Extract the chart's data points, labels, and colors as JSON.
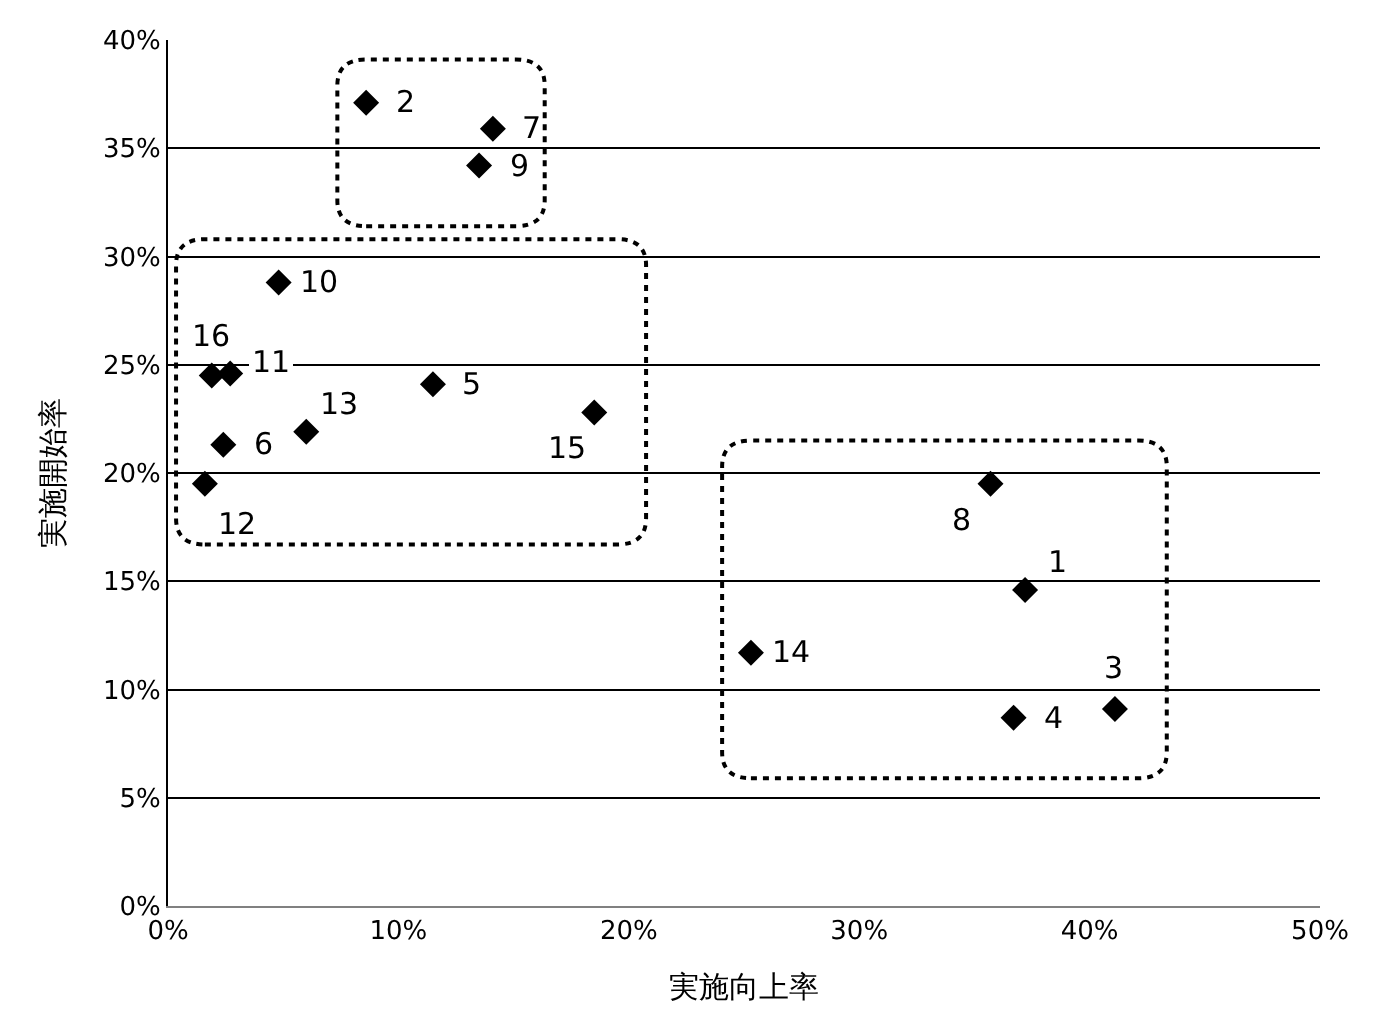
{
  "chart_data": {
    "type": "scatter",
    "xlabel": "実施向上率",
    "ylabel": "実施開始率",
    "x": [
      37.2,
      8.6,
      41.1,
      36.7,
      11.5,
      2.4,
      14.1,
      35.7,
      13.5,
      4.8,
      2.7,
      1.6,
      6.0,
      25.3,
      18.5,
      1.9
    ],
    "series": [
      {
        "color": "#000000",
        "values": [
          14.6,
          37.1,
          9.1,
          8.7,
          24.1,
          21.3,
          35.9,
          19.5,
          34.2,
          28.8,
          24.6,
          19.5,
          21.9,
          11.7,
          22.8,
          24.5
        ]
      }
    ],
    "annotations": [
      {
        "text": "1",
        "x": 37.2,
        "y": 14.6
      },
      {
        "text": "2",
        "x": 8.6,
        "y": 37.1
      },
      {
        "text": "3",
        "x": 41.1,
        "y": 9.1
      },
      {
        "text": "4",
        "x": 36.7,
        "y": 8.7
      },
      {
        "text": "5",
        "x": 11.5,
        "y": 24.1
      },
      {
        "text": "6",
        "x": 2.4,
        "y": 21.3
      },
      {
        "text": "7",
        "x": 14.1,
        "y": 35.9
      },
      {
        "text": "8",
        "x": 35.7,
        "y": 19.5
      },
      {
        "text": "9",
        "x": 13.5,
        "y": 34.2
      },
      {
        "text": "10",
        "x": 4.8,
        "y": 28.8
      },
      {
        "text": "11",
        "x": 2.7,
        "y": 24.6
      },
      {
        "text": "12",
        "x": 1.6,
        "y": 19.5
      },
      {
        "text": "13",
        "x": 6.0,
        "y": 21.9
      },
      {
        "text": "14",
        "x": 25.3,
        "y": 11.7
      },
      {
        "text": "15",
        "x": 18.5,
        "y": 22.8
      },
      {
        "text": "16",
        "x": 1.9,
        "y": 24.5
      }
    ],
    "xlim": [
      0,
      50
    ],
    "ylim": [
      0,
      40
    ],
    "xticks": [
      {
        "value": 0,
        "label": "0%"
      },
      {
        "value": 10,
        "label": "10%"
      },
      {
        "value": 20,
        "label": "20%"
      },
      {
        "value": 30,
        "label": "30%"
      },
      {
        "value": 40,
        "label": "40%"
      },
      {
        "value": 50,
        "label": "50%"
      }
    ],
    "yticks": [
      {
        "value": 0,
        "label": "0%"
      },
      {
        "value": 5,
        "label": "5%"
      },
      {
        "value": 10,
        "label": "10%"
      },
      {
        "value": 15,
        "label": "15%"
      },
      {
        "value": 20,
        "label": "20%"
      },
      {
        "value": 25,
        "label": "25%"
      },
      {
        "value": 30,
        "label": "30%"
      },
      {
        "value": 35,
        "label": "35%"
      },
      {
        "value": 40,
        "label": "40%"
      }
    ],
    "grid": "y",
    "marker": "diamond"
  }
}
